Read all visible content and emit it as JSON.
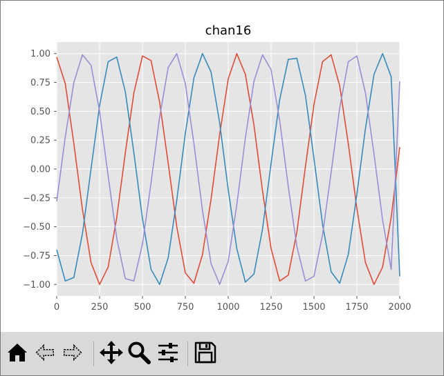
{
  "window": {
    "background": "#ffffff",
    "toolbar_color": "#d9d9d9"
  },
  "chart_data": {
    "type": "line",
    "title": "chan16",
    "xlabel": "",
    "ylabel": "",
    "xlim": [
      0,
      2000
    ],
    "ylim": [
      -1.1,
      1.1
    ],
    "xticks": [
      0,
      250,
      500,
      750,
      1000,
      1250,
      1500,
      1750,
      2000
    ],
    "xtick_labels": [
      "0",
      "250",
      "500",
      "750",
      "1000",
      "1250",
      "1500",
      "1750",
      "2000"
    ],
    "yticks": [
      1.0,
      0.75,
      0.5,
      0.25,
      0.0,
      -0.25,
      -0.5,
      -0.75,
      -1.0
    ],
    "ytick_labels": [
      "1.00",
      "0.75",
      "0.50",
      "0.25",
      "0.00",
      "−0.25",
      "−0.50",
      "−0.75",
      "−1.00"
    ],
    "grid": true,
    "style": "ggplot",
    "background": "#e5e5e5",
    "series": [
      {
        "color": "#e24a33",
        "x": [
          0,
          50,
          100,
          150,
          200,
          250,
          300,
          350,
          400,
          450,
          500,
          550,
          600,
          650,
          700,
          750,
          800,
          850,
          900,
          950,
          1000,
          1050,
          1100,
          1150,
          1200,
          1250,
          1300,
          1350,
          1400,
          1450,
          1500,
          1550,
          1600,
          1650,
          1700,
          1750,
          1800,
          1850,
          1900,
          1950,
          2000
        ],
        "y": [
          0.97,
          0.74,
          0.22,
          -0.35,
          -0.81,
          -1.0,
          -0.85,
          -0.42,
          0.14,
          0.66,
          0.98,
          0.94,
          0.58,
          0.05,
          -0.5,
          -0.9,
          -0.99,
          -0.74,
          -0.26,
          0.3,
          0.78,
          1.0,
          0.82,
          0.38,
          -0.19,
          -0.69,
          -0.97,
          -0.92,
          -0.55,
          0.02,
          0.56,
          0.93,
          0.99,
          0.72,
          0.22,
          -0.34,
          -0.81,
          -1.0,
          -0.85,
          -0.42,
          0.19
        ]
      },
      {
        "color": "#348abd",
        "x": [
          0,
          50,
          100,
          150,
          200,
          250,
          300,
          350,
          400,
          450,
          500,
          550,
          600,
          650,
          700,
          750,
          800,
          850,
          900,
          950,
          1000,
          1050,
          1100,
          1150,
          1200,
          1250,
          1300,
          1350,
          1400,
          1450,
          1500,
          1550,
          1600,
          1650,
          1700,
          1750,
          1800,
          1850,
          1900,
          1950,
          2000
        ],
        "y": [
          -0.7,
          -0.97,
          -0.94,
          -0.56,
          0.0,
          0.55,
          0.93,
          0.97,
          0.67,
          0.14,
          -0.43,
          -0.87,
          -1.0,
          -0.77,
          -0.27,
          0.31,
          0.79,
          1.0,
          0.84,
          0.4,
          -0.18,
          -0.69,
          -0.98,
          -0.91,
          -0.52,
          0.05,
          0.6,
          0.95,
          0.96,
          0.64,
          0.09,
          -0.48,
          -0.89,
          -0.99,
          -0.74,
          -0.22,
          0.35,
          0.82,
          1.0,
          0.8,
          -0.93
        ]
      },
      {
        "color": "#988ed5",
        "x": [
          0,
          50,
          100,
          150,
          200,
          250,
          300,
          350,
          400,
          450,
          500,
          550,
          600,
          650,
          700,
          750,
          800,
          850,
          900,
          950,
          1000,
          1050,
          1100,
          1150,
          1200,
          1250,
          1300,
          1350,
          1400,
          1450,
          1500,
          1550,
          1600,
          1650,
          1700,
          1750,
          1800,
          1850,
          1900,
          1950,
          2000
        ],
        "y": [
          -0.28,
          0.28,
          0.75,
          0.99,
          0.9,
          0.5,
          -0.06,
          -0.6,
          -0.95,
          -0.97,
          -0.65,
          -0.12,
          0.45,
          0.88,
          1.0,
          0.74,
          0.22,
          -0.36,
          -0.82,
          -1.0,
          -0.8,
          -0.31,
          0.27,
          0.76,
          0.99,
          0.86,
          0.42,
          -0.15,
          -0.67,
          -0.97,
          -0.93,
          -0.57,
          -0.03,
          0.53,
          0.93,
          0.98,
          0.66,
          0.13,
          -0.44,
          -0.87,
          0.76
        ]
      }
    ]
  },
  "toolbar": {
    "tools": [
      {
        "name": "home-icon",
        "tooltip": ""
      },
      {
        "name": "back-icon",
        "tooltip": ""
      },
      {
        "name": "forward-icon",
        "tooltip": ""
      },
      {
        "name": "pan-icon",
        "tooltip": ""
      },
      {
        "name": "zoom-icon",
        "tooltip": ""
      },
      {
        "name": "subplots-icon",
        "tooltip": ""
      },
      {
        "name": "save-icon",
        "tooltip": ""
      }
    ]
  }
}
